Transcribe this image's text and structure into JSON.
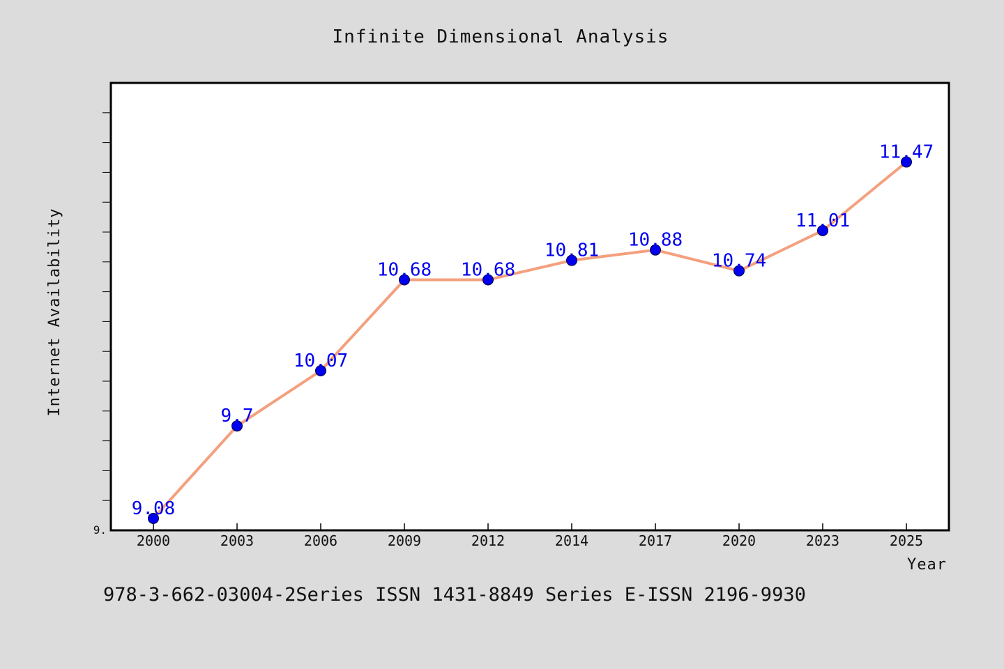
{
  "chart_data": {
    "type": "line",
    "title": "Infinite Dimensional Analysis",
    "xlabel": "Year",
    "ylabel": "Internet Availability",
    "categories": [
      "2000",
      "2003",
      "2006",
      "2009",
      "2012",
      "2014",
      "2017",
      "2020",
      "2023",
      "2025"
    ],
    "series": [
      {
        "values": [
          9.08,
          9.7,
          10.07,
          10.68,
          10.68,
          10.81,
          10.88,
          10.74,
          11.01,
          11.47
        ]
      }
    ],
    "data_labels": [
      "9.08",
      "9.7",
      "10.07",
      "10.68",
      "10.68",
      "10.81",
      "10.88",
      "10.74",
      "11.01",
      "11.47"
    ],
    "y_tick_label": "9.",
    "ylim": [
      9.0,
      12.0
    ],
    "grid": false,
    "legend": "none",
    "colors": {
      "background": "#dcdcdc",
      "plot_background": "#ffffff",
      "line": "#f4a07e",
      "marker": "#0000ee",
      "data_label": "#0000ee",
      "axis": "#000000"
    }
  },
  "footer": {
    "text": "978-3-662-03004-2Series ISSN 1431-8849 Series E-ISSN 2196-9930"
  }
}
